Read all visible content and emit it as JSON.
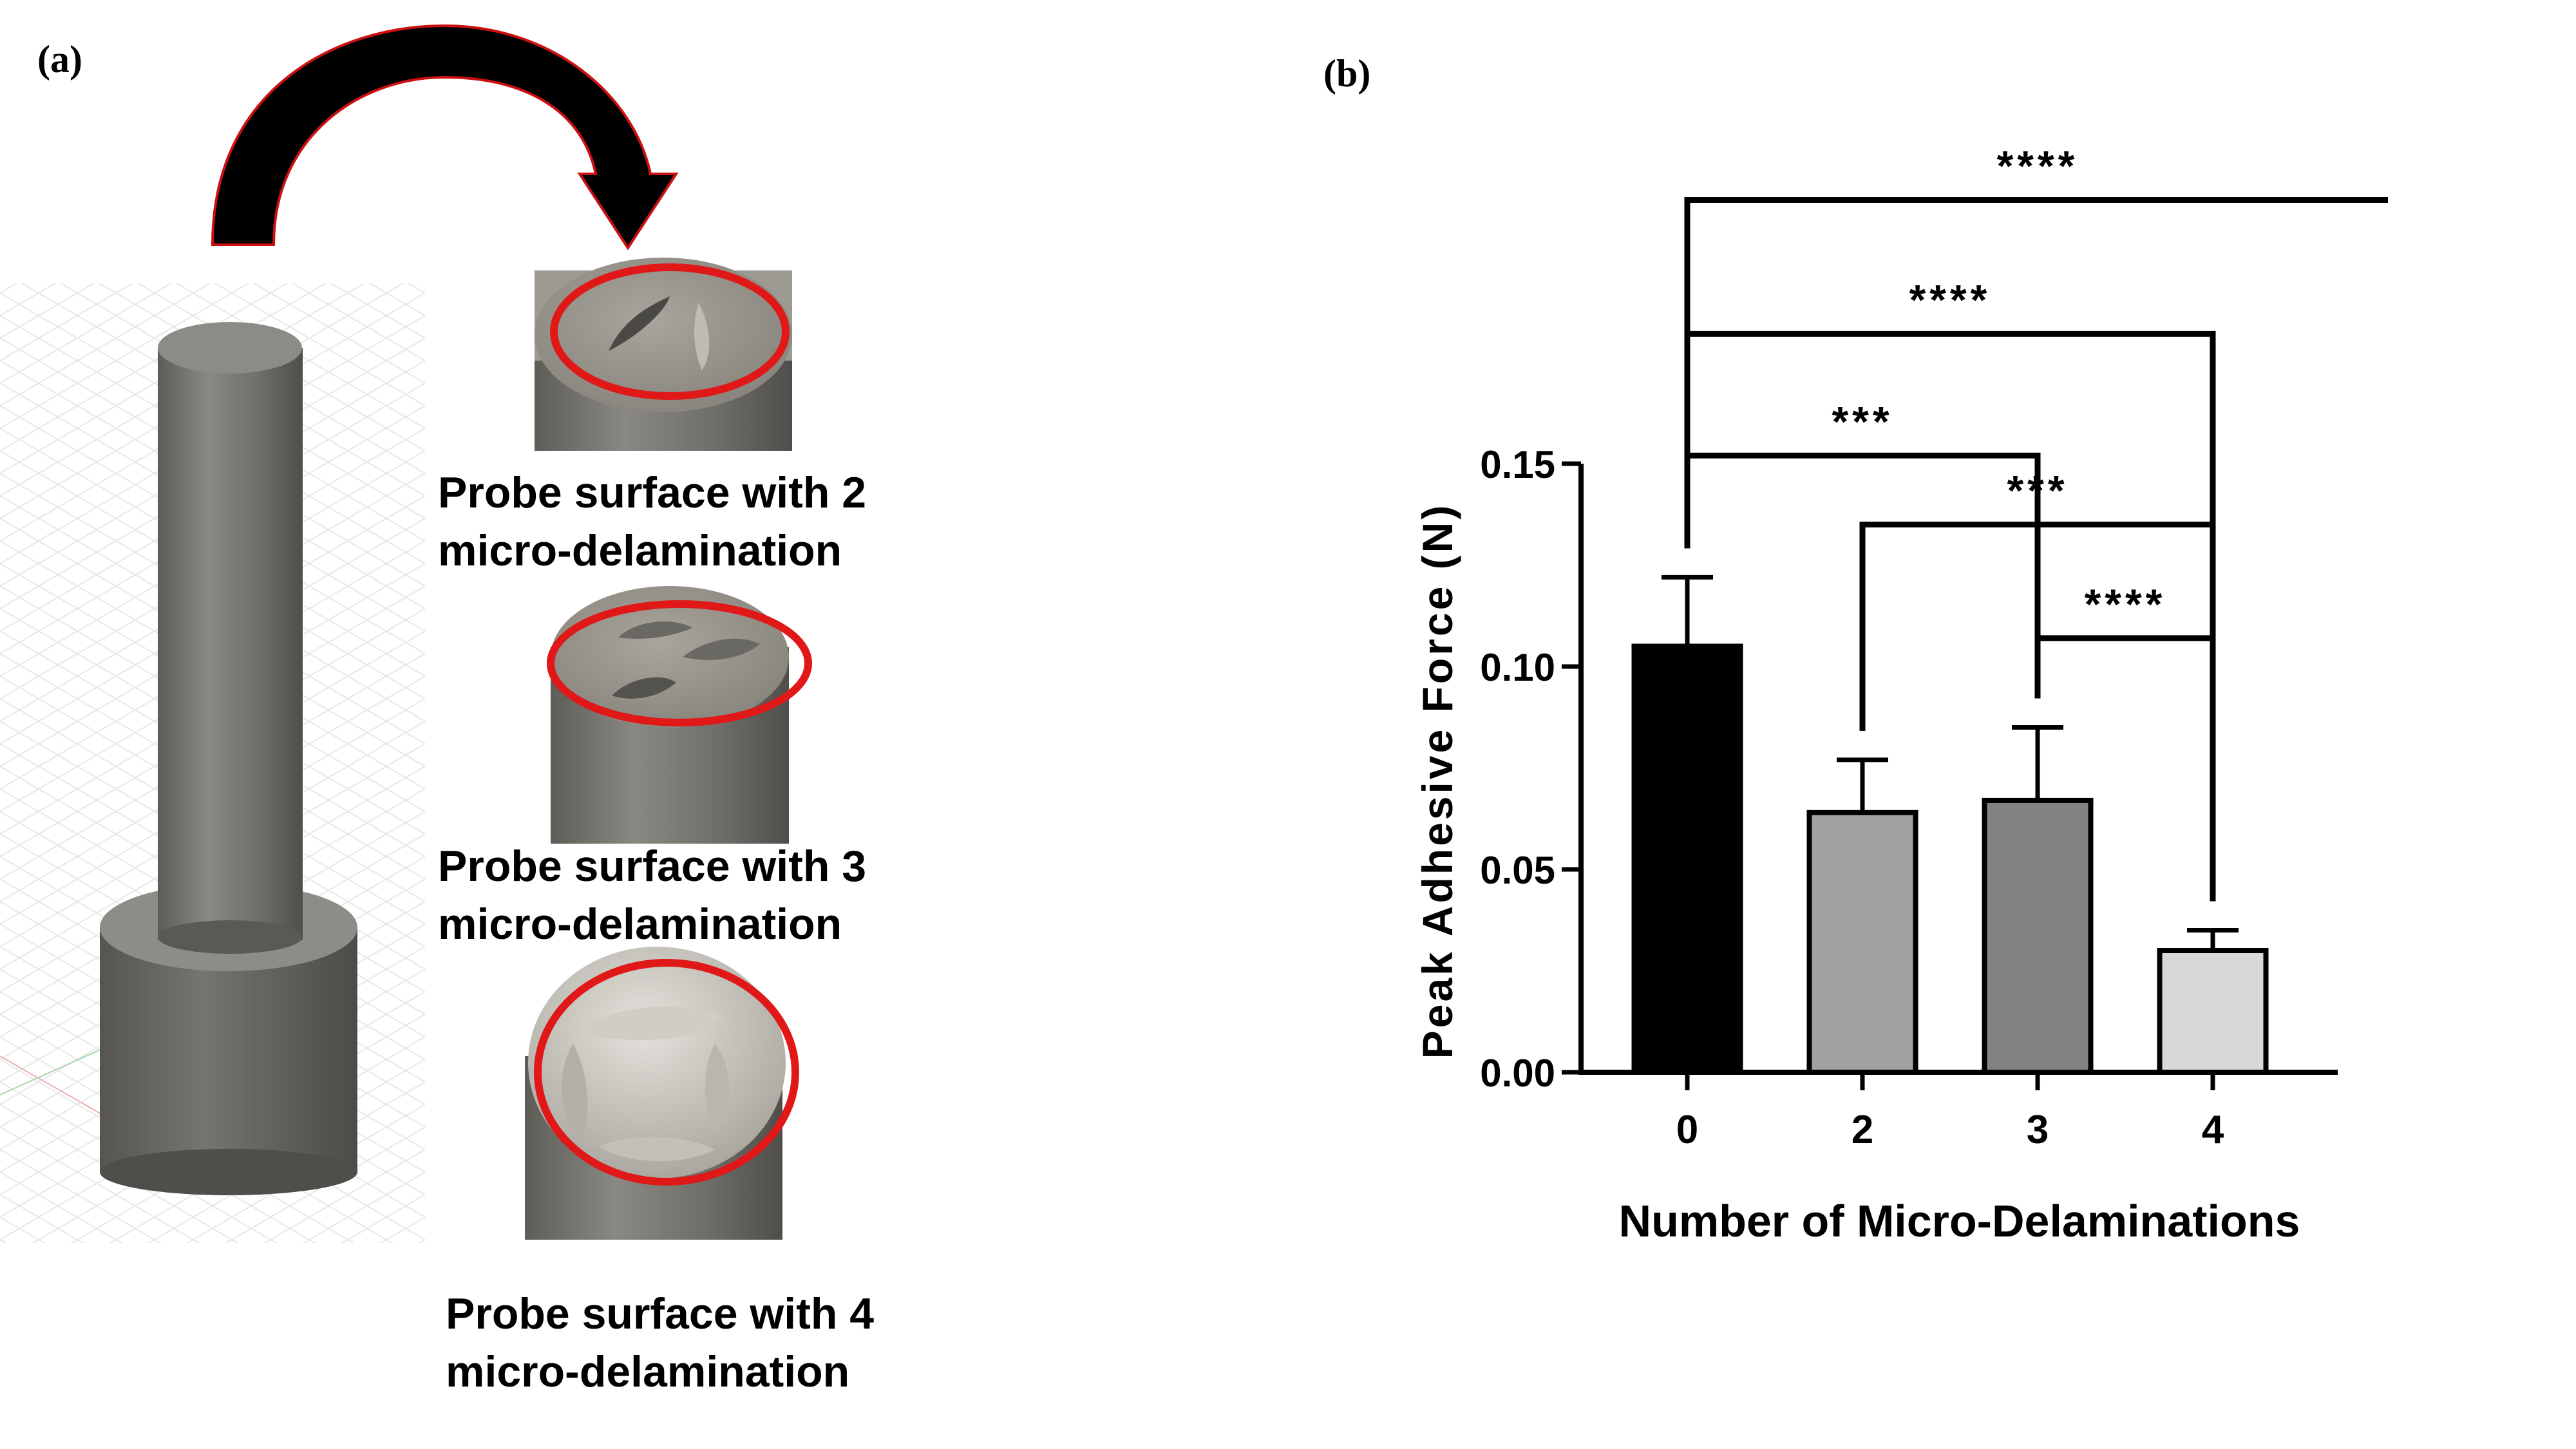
{
  "panel_labels": {
    "a": "(a)",
    "b": "(b)"
  },
  "captions": [
    {
      "line1": "Probe surface with 2",
      "line2": "micro-delamination"
    },
    {
      "line1": "Probe surface with 3",
      "line2": "micro-delamination"
    },
    {
      "line1": "Probe surface with 4",
      "line2": "micro-delamination"
    }
  ],
  "colors": {
    "highlight_ring": "#e01818",
    "arrow": "#000000",
    "probe_gray": "#7a7872"
  },
  "chart_data": {
    "type": "bar",
    "categories": [
      "0",
      "2",
      "3",
      "4"
    ],
    "values": [
      0.105,
      0.064,
      0.067,
      0.03
    ],
    "errors": [
      0.017,
      0.013,
      0.018,
      0.005
    ],
    "bar_colors": [
      "#000000",
      "#a2a2a4",
      "#828282",
      "#d8d8d8"
    ],
    "xlabel": "Number of Micro-Delaminations",
    "ylabel": "Peak  Adhesive Force (N)",
    "ylim": [
      0,
      0.15
    ],
    "yticks": [
      "0.00",
      "0.05",
      "0.10",
      "0.15"
    ],
    "ytick_values": [
      0,
      0.05,
      0.1,
      0.15
    ],
    "grid": false,
    "significance": [
      {
        "from": 0,
        "to": 4,
        "label": "****",
        "level": 0.215
      },
      {
        "from": 0,
        "to": 3,
        "label": "****",
        "level": 0.182
      },
      {
        "from": 0,
        "to": 2,
        "label": "***",
        "level": 0.152
      },
      {
        "from": 1,
        "to": 3,
        "label": "***",
        "level": 0.135
      },
      {
        "from": 2,
        "to": 3,
        "label": "****",
        "level": 0.107
      }
    ]
  }
}
